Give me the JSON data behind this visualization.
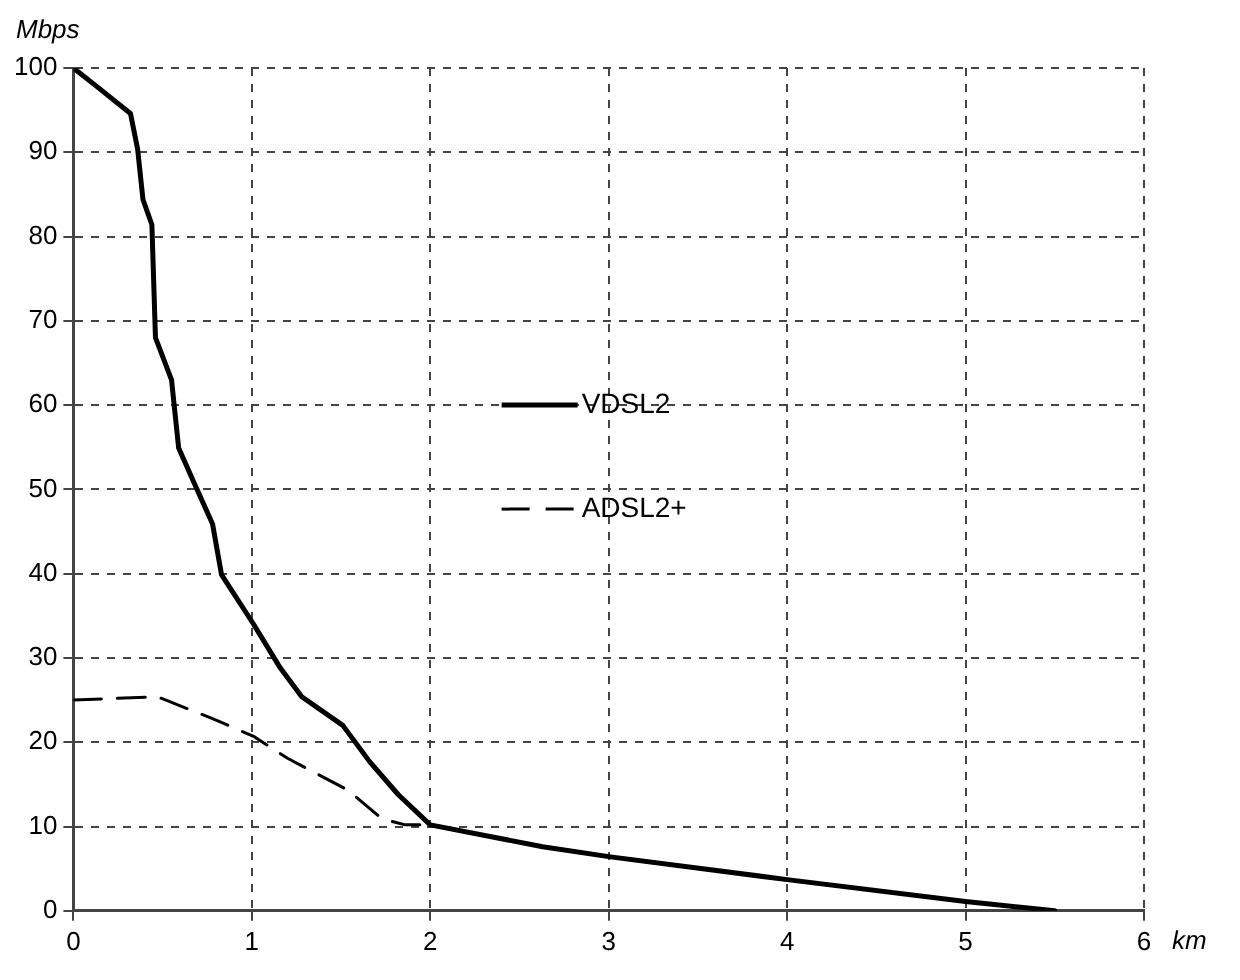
{
  "chart_data": {
    "type": "line",
    "xlabel": "km",
    "ylabel": "Mbps",
    "xlim": [
      0,
      6
    ],
    "ylim": [
      0,
      100
    ],
    "xticks": [
      0,
      1,
      2,
      3,
      4,
      5,
      6
    ],
    "yticks": [
      0,
      10,
      20,
      30,
      40,
      50,
      60,
      70,
      80,
      90,
      100
    ],
    "grid": true,
    "legend": "center",
    "marker": "none",
    "series": [
      {
        "name": "VDSL2",
        "color": "#000000",
        "line_style": "solid",
        "x": [
          0,
          0.12,
          0.32,
          0.36,
          0.39,
          0.44,
          0.46,
          0.55,
          0.59,
          0.68,
          0.78,
          0.83,
          1.01,
          1.16,
          1.28,
          1.51,
          1.66,
          1.82,
          2.0,
          2.63,
          3.01,
          4.0,
          5.0,
          5.5
        ],
        "values": [
          100,
          98,
          94.6,
          90.4,
          84.4,
          81.4,
          68,
          63,
          54.9,
          50.6,
          45.9,
          39.9,
          34,
          28.8,
          25.4,
          22,
          17.7,
          13.8,
          10.2,
          7.6,
          6.4,
          3.7,
          1.1,
          0
        ]
      },
      {
        "name": "ADSL2+",
        "color": "#000000",
        "line_style": "dashed",
        "x": [
          0,
          0.47,
          0.78,
          1.01,
          1.2,
          1.54,
          1.73,
          1.86,
          2.0
        ],
        "values": [
          25,
          25.4,
          22.8,
          20.7,
          18.1,
          14.3,
          10.9,
          10.2,
          10.2
        ]
      }
    ]
  }
}
